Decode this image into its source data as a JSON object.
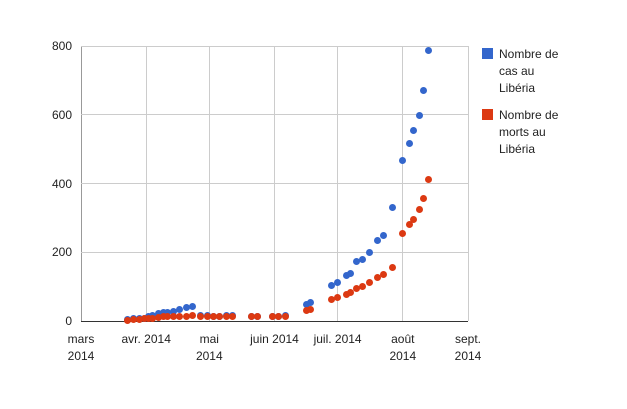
{
  "chart_data": {
    "type": "scatter",
    "title": "",
    "xlabel": "",
    "ylabel": "",
    "grid": true,
    "legend_position": "right",
    "x_axis": {
      "ticks": [
        {
          "date": "2014-03-01",
          "lines": [
            "mars",
            "2014"
          ]
        },
        {
          "date": "2014-04-01",
          "lines": [
            "avr. 2014"
          ]
        },
        {
          "date": "2014-05-01",
          "lines": [
            "mai",
            "2014"
          ]
        },
        {
          "date": "2014-06-01",
          "lines": [
            "juin 2014"
          ]
        },
        {
          "date": "2014-07-01",
          "lines": [
            "juil. 2014"
          ]
        },
        {
          "date": "2014-08-01",
          "lines": [
            "août",
            "2014"
          ]
        },
        {
          "date": "2014-09-01",
          "lines": [
            "sept.",
            "2014"
          ]
        }
      ]
    },
    "y_axis": {
      "min": 0,
      "max": 800,
      "ticks": [
        0,
        200,
        400,
        600,
        800
      ]
    },
    "series": [
      {
        "name": "Nombre de cas au Libéria",
        "color": "#3366cc",
        "field": "cases"
      },
      {
        "name": "Nombre de morts au Libéria",
        "color": "#dc3912",
        "field": "deaths"
      }
    ],
    "rows": [
      {
        "date": "2014-03-23",
        "cases": 3,
        "deaths": 2
      },
      {
        "date": "2014-03-26",
        "cases": 6,
        "deaths": 4
      },
      {
        "date": "2014-03-29",
        "cases": 7,
        "deaths": 5
      },
      {
        "date": "2014-03-31",
        "cases": 8,
        "deaths": 6
      },
      {
        "date": "2014-04-02",
        "cases": 13,
        "deaths": 6
      },
      {
        "date": "2014-04-04",
        "cases": 16,
        "deaths": 7
      },
      {
        "date": "2014-04-07",
        "cases": 21,
        "deaths": 10
      },
      {
        "date": "2014-04-09",
        "cases": 25,
        "deaths": 12
      },
      {
        "date": "2014-04-11",
        "cases": 26,
        "deaths": 13
      },
      {
        "date": "2014-04-14",
        "cases": 29,
        "deaths": 13
      },
      {
        "date": "2014-04-17",
        "cases": 33,
        "deaths": 13
      },
      {
        "date": "2014-04-20",
        "cases": 38,
        "deaths": 14
      },
      {
        "date": "2014-04-23",
        "cases": 41,
        "deaths": 16
      },
      {
        "date": "2014-04-27",
        "cases": 15,
        "deaths": 14
      },
      {
        "date": "2014-04-30",
        "cases": 15,
        "deaths": 14
      },
      {
        "date": "2014-05-03",
        "cases": 14,
        "deaths": 13
      },
      {
        "date": "2014-05-06",
        "cases": 14,
        "deaths": 13
      },
      {
        "date": "2014-05-09",
        "cases": 15,
        "deaths": 14
      },
      {
        "date": "2014-05-12",
        "cases": 15,
        "deaths": 14
      },
      {
        "date": "2014-05-21",
        "cases": 14,
        "deaths": 13
      },
      {
        "date": "2014-05-24",
        "cases": 14,
        "deaths": 13
      },
      {
        "date": "2014-05-31",
        "cases": 14,
        "deaths": 13
      },
      {
        "date": "2014-06-03",
        "cases": 14,
        "deaths": 13
      },
      {
        "date": "2014-06-06",
        "cases": 15,
        "deaths": 14
      },
      {
        "date": "2014-06-16",
        "cases": 49,
        "deaths": 30
      },
      {
        "date": "2014-06-18",
        "cases": 53,
        "deaths": 33
      },
      {
        "date": "2014-06-28",
        "cases": 104,
        "deaths": 62
      },
      {
        "date": "2014-07-01",
        "cases": 112,
        "deaths": 68
      },
      {
        "date": "2014-07-05",
        "cases": 131,
        "deaths": 77
      },
      {
        "date": "2014-07-07",
        "cases": 137,
        "deaths": 82
      },
      {
        "date": "2014-07-10",
        "cases": 172,
        "deaths": 95
      },
      {
        "date": "2014-07-13",
        "cases": 178,
        "deaths": 101
      },
      {
        "date": "2014-07-16",
        "cases": 199,
        "deaths": 113
      },
      {
        "date": "2014-07-20",
        "cases": 234,
        "deaths": 127
      },
      {
        "date": "2014-07-23",
        "cases": 248,
        "deaths": 135
      },
      {
        "date": "2014-07-27",
        "cases": 329,
        "deaths": 156
      },
      {
        "date": "2014-08-01",
        "cases": 468,
        "deaths": 255
      },
      {
        "date": "2014-08-04",
        "cases": 516,
        "deaths": 282
      },
      {
        "date": "2014-08-06",
        "cases": 554,
        "deaths": 294
      },
      {
        "date": "2014-08-09",
        "cases": 599,
        "deaths": 323
      },
      {
        "date": "2014-08-11",
        "cases": 670,
        "deaths": 355
      },
      {
        "date": "2014-08-13",
        "cases": 786,
        "deaths": 413
      }
    ]
  },
  "legend": {
    "entries": [
      {
        "color": "#3366cc",
        "lines": [
          "Nombre de",
          "cas au",
          "Libéria"
        ]
      },
      {
        "color": "#dc3912",
        "lines": [
          "Nombre de",
          "morts au",
          "Libéria"
        ]
      }
    ]
  }
}
